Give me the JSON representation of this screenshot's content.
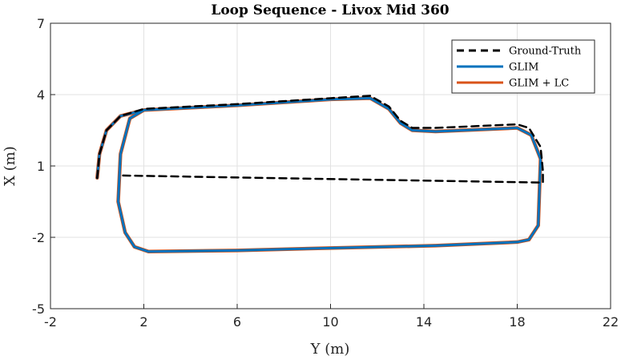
{
  "chart_data": {
    "type": "line",
    "title": "Loop Sequence - Livox Mid 360",
    "xlabel": "Y (m)",
    "ylabel": "X (m)",
    "xlim": [
      -2,
      22
    ],
    "ylim": [
      -5,
      7
    ],
    "xticks": [
      -2,
      2,
      6,
      10,
      14,
      18,
      22
    ],
    "yticks": [
      -5,
      -2,
      1,
      4,
      7
    ],
    "xtick_labels": [
      "-2",
      "2",
      "6",
      "10",
      "14",
      "18",
      "22"
    ],
    "ytick_labels": [
      "-5",
      "-2",
      "1",
      "4",
      "7"
    ],
    "grid": true,
    "legend_position": "top-right",
    "series": [
      {
        "name": "Ground-Truth",
        "color": "#000000",
        "style": "dashed",
        "x": [
          0.0,
          0.1,
          0.4,
          1.0,
          2.0,
          6.0,
          10.0,
          11.7,
          12.5,
          13.0,
          13.5,
          14.5,
          18.0,
          18.5,
          19.0,
          19.1,
          19.1,
          1.0
        ],
        "y": [
          0.5,
          1.5,
          2.5,
          3.1,
          3.4,
          3.6,
          3.85,
          3.95,
          3.5,
          2.9,
          2.6,
          2.6,
          2.75,
          2.6,
          1.8,
          0.8,
          0.3,
          0.6
        ]
      },
      {
        "name": "GLIM",
        "color": "#0072BD",
        "style": "solid",
        "x": [
          0.0,
          0.1,
          0.4,
          1.0,
          2.0,
          6.0,
          10.0,
          11.7,
          12.5,
          13.0,
          13.5,
          14.5,
          18.0,
          18.6,
          19.0,
          18.9,
          18.5,
          18.0,
          14.5,
          10.0,
          6.0,
          2.2,
          1.6,
          1.2,
          0.9,
          1.0,
          1.4,
          2.0
        ],
        "y": [
          0.5,
          1.5,
          2.5,
          3.1,
          3.35,
          3.55,
          3.8,
          3.85,
          3.4,
          2.8,
          2.5,
          2.45,
          2.6,
          2.3,
          1.3,
          -1.5,
          -2.1,
          -2.2,
          -2.35,
          -2.45,
          -2.55,
          -2.6,
          -2.4,
          -1.8,
          -0.5,
          1.5,
          3.0,
          3.35
        ]
      },
      {
        "name": "GLIM + LC",
        "color": "#D95319",
        "style": "solid",
        "x": [
          0.0,
          0.1,
          0.4,
          1.0,
          2.0,
          6.0,
          10.0,
          11.7,
          12.5,
          13.0,
          13.5,
          14.5,
          18.0,
          18.6,
          19.0,
          18.9,
          18.5,
          18.0,
          14.5,
          10.0,
          6.0,
          2.2,
          1.6,
          1.2,
          0.9,
          1.0,
          1.4,
          2.0
        ],
        "y": [
          0.5,
          1.5,
          2.5,
          3.1,
          3.35,
          3.55,
          3.8,
          3.85,
          3.4,
          2.8,
          2.5,
          2.45,
          2.6,
          2.3,
          1.3,
          -1.5,
          -2.1,
          -2.2,
          -2.35,
          -2.45,
          -2.55,
          -2.6,
          -2.4,
          -1.8,
          -0.5,
          1.5,
          3.0,
          3.35
        ]
      }
    ]
  }
}
